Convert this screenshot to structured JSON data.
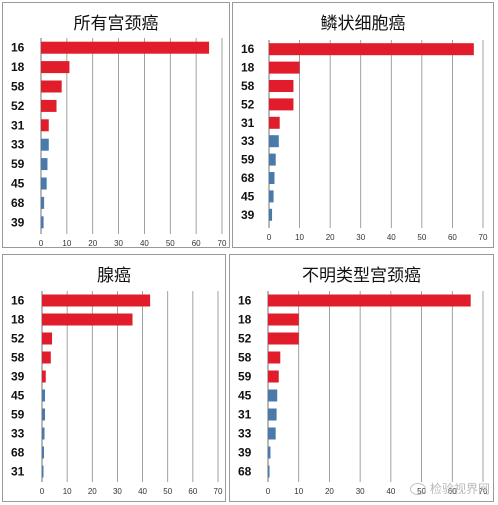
{
  "chart_data": [
    {
      "type": "bar",
      "orientation": "horizontal",
      "title": "所有宫颈癌",
      "categories": [
        "16",
        "18",
        "58",
        "52",
        "31",
        "33",
        "59",
        "45",
        "68",
        "39"
      ],
      "values": [
        65,
        11,
        8,
        6,
        3,
        3,
        2.5,
        2.2,
        1.2,
        1.0
      ],
      "xlim": [
        0,
        70
      ],
      "xticks": [
        0,
        10,
        20,
        30,
        40,
        50,
        60,
        70
      ],
      "grid": true
    },
    {
      "type": "bar",
      "orientation": "horizontal",
      "title": "鳞状细胞癌",
      "categories": [
        "16",
        "18",
        "58",
        "52",
        "31",
        "33",
        "59",
        "68",
        "45",
        "39"
      ],
      "values": [
        67,
        10,
        8,
        8,
        3.5,
        3.2,
        2.2,
        1.8,
        1.5,
        1.0
      ],
      "xlim": [
        0,
        70
      ],
      "xticks": [
        0,
        10,
        20,
        30,
        40,
        50,
        60,
        70
      ],
      "grid": true
    },
    {
      "type": "bar",
      "orientation": "horizontal",
      "title": "腺癌",
      "categories": [
        "16",
        "18",
        "52",
        "58",
        "39",
        "45",
        "59",
        "33",
        "68",
        "31"
      ],
      "values": [
        43,
        36,
        4,
        3.5,
        1.5,
        1.2,
        1.2,
        1.0,
        0.8,
        0.6
      ],
      "xlim": [
        0,
        70
      ],
      "xticks": [
        0,
        10,
        20,
        30,
        40,
        50,
        60,
        70
      ],
      "grid": true
    },
    {
      "type": "bar",
      "orientation": "horizontal",
      "title": "不明类型宫颈癌",
      "categories": [
        "16",
        "18",
        "52",
        "58",
        "59",
        "45",
        "31",
        "33",
        "39",
        "68"
      ],
      "values": [
        66,
        10,
        10,
        4,
        3.5,
        3,
        2.8,
        2.5,
        0.8,
        0.5
      ],
      "xlim": [
        0,
        70
      ],
      "xticks": [
        0,
        10,
        20,
        30,
        40,
        50,
        60,
        70
      ],
      "grid": true
    }
  ],
  "colors": {
    "red": "#e11d2b",
    "blue": "#4a7aaa",
    "grid": "#8a8a8a"
  },
  "watermark": {
    "text": "检验视界网",
    "icon": "wechat-icon"
  }
}
